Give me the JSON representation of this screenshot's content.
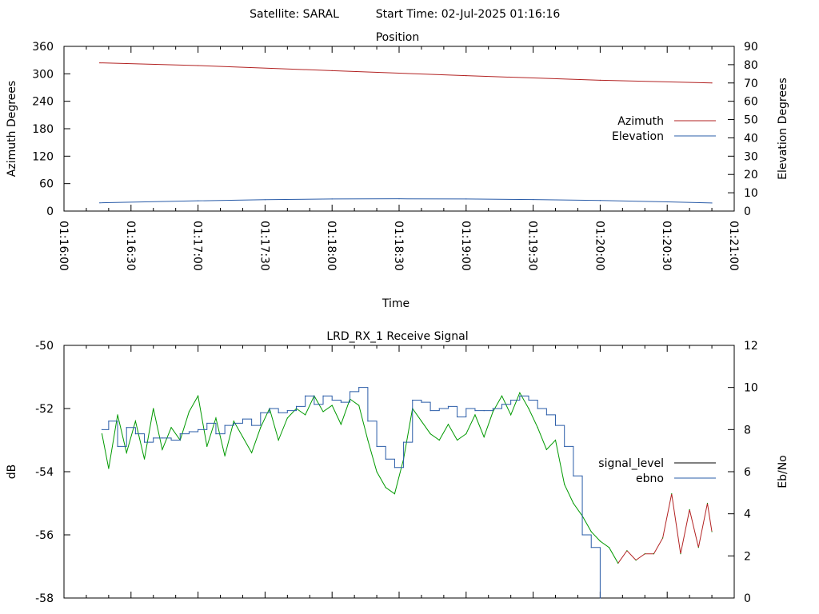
{
  "header": {
    "satellite_label": "Satellite: SARAL",
    "start_time_label": "Start Time: 02-Jul-2025 01:16:16"
  },
  "chart_data": [
    {
      "type": "line",
      "title": "Position",
      "xlabel": "Time",
      "ylabel": "Azimuth Degrees",
      "y2label": "Elevation Degrees",
      "x_ticks": [
        "01:16:00",
        "01:16:30",
        "01:17:00",
        "01:17:30",
        "01:18:00",
        "01:18:30",
        "01:19:00",
        "01:19:30",
        "01:20:00",
        "01:20:30",
        "01:21:00"
      ],
      "xlim_seconds": [
        0,
        300
      ],
      "ylim": [
        0,
        360
      ],
      "y_ticks": [
        "0",
        "60",
        "120",
        "180",
        "240",
        "300",
        "360"
      ],
      "y2lim": [
        0,
        90
      ],
      "y2_ticks": [
        "0",
        "10",
        "20",
        "30",
        "40",
        "50",
        "60",
        "70",
        "80",
        "90"
      ],
      "legend_position": "right",
      "series": [
        {
          "name": "Azimuth",
          "axis": "y",
          "color": "#b22222",
          "x": [
            "01:16:16",
            "01:17:00",
            "01:18:00",
            "01:19:00",
            "01:20:00",
            "01:20:50"
          ],
          "values": [
            324,
            318,
            307,
            296,
            286,
            280
          ]
        },
        {
          "name": "Elevation",
          "axis": "y2",
          "color": "#2a5ca8",
          "x": [
            "01:16:16",
            "01:17:00",
            "01:17:30",
            "01:18:00",
            "01:18:30",
            "01:19:00",
            "01:19:30",
            "01:20:00",
            "01:20:30",
            "01:20:50"
          ],
          "values": [
            4.5,
            5.6,
            6.2,
            6.6,
            6.7,
            6.6,
            6.3,
            5.8,
            5.0,
            4.4
          ]
        }
      ]
    },
    {
      "type": "line",
      "title": "LRD_RX_1 Receive Signal",
      "ylabel": "dB",
      "y2label": "Eb/No",
      "ylim": [
        -58,
        -50
      ],
      "y_ticks": [
        "-58",
        "-56",
        "-54",
        "-52",
        "-50"
      ],
      "y2lim": [
        0,
        12
      ],
      "y2_ticks": [
        "0",
        "2",
        "4",
        "6",
        "8",
        "10",
        "12"
      ],
      "xlim_seconds": [
        0,
        300
      ],
      "legend_position": "right",
      "series": [
        {
          "name": "signal_level",
          "axis": "y",
          "color": "#009900",
          "note_color": "#b22222",
          "x": [
            "01:16:17",
            "01:16:20",
            "01:16:24",
            "01:16:28",
            "01:16:32",
            "01:16:36",
            "01:16:40",
            "01:16:44",
            "01:16:48",
            "01:16:52",
            "01:16:56",
            "01:17:00",
            "01:17:04",
            "01:17:08",
            "01:17:12",
            "01:17:16",
            "01:17:20",
            "01:17:24",
            "01:17:28",
            "01:17:32",
            "01:17:36",
            "01:17:40",
            "01:17:44",
            "01:17:48",
            "01:17:52",
            "01:17:56",
            "01:18:00",
            "01:18:04",
            "01:18:08",
            "01:18:12",
            "01:18:16",
            "01:18:20",
            "01:18:24",
            "01:18:28",
            "01:18:32",
            "01:18:36",
            "01:18:40",
            "01:18:44",
            "01:18:48",
            "01:18:52",
            "01:18:56",
            "01:19:00",
            "01:19:04",
            "01:19:08",
            "01:19:12",
            "01:19:16",
            "01:19:20",
            "01:19:24",
            "01:19:28",
            "01:19:32",
            "01:19:36",
            "01:19:40",
            "01:19:44",
            "01:19:48",
            "01:19:52",
            "01:19:56",
            "01:20:00",
            "01:20:04",
            "01:20:08",
            "01:20:12",
            "01:20:16",
            "01:20:20",
            "01:20:24",
            "01:20:28",
            "01:20:32",
            "01:20:36",
            "01:20:40",
            "01:20:44",
            "01:20:48",
            "01:20:50"
          ],
          "values": [
            -52.8,
            -53.9,
            -52.2,
            -53.4,
            -52.4,
            -53.6,
            -52.0,
            -53.3,
            -52.6,
            -53.0,
            -52.1,
            -51.6,
            -53.2,
            -52.3,
            -53.5,
            -52.4,
            -52.9,
            -53.4,
            -52.6,
            -52.0,
            -53.0,
            -52.3,
            -52.0,
            -52.2,
            -51.6,
            -52.1,
            -51.9,
            -52.5,
            -51.7,
            -51.9,
            -53.0,
            -54.0,
            -54.5,
            -54.7,
            -53.6,
            -52.0,
            -52.4,
            -52.8,
            -53.0,
            -52.5,
            -53.0,
            -52.8,
            -52.2,
            -52.9,
            -52.1,
            -51.6,
            -52.2,
            -51.5,
            -52.0,
            -52.6,
            -53.3,
            -53.0,
            -54.4,
            -55.0,
            -55.4,
            -55.9,
            -56.2,
            -56.4,
            -56.9,
            -56.5,
            -56.8,
            -56.6,
            -56.6,
            -56.1,
            -54.7,
            -56.6,
            -55.2,
            -56.4,
            -55.0,
            -55.9
          ]
        },
        {
          "name": "ebno",
          "axis": "y2",
          "color": "#2a5ca8",
          "x": [
            "01:16:17",
            "01:16:20",
            "01:16:24",
            "01:16:28",
            "01:16:32",
            "01:16:36",
            "01:16:40",
            "01:16:44",
            "01:16:48",
            "01:16:52",
            "01:16:56",
            "01:17:00",
            "01:17:04",
            "01:17:08",
            "01:17:12",
            "01:17:16",
            "01:17:20",
            "01:17:24",
            "01:17:28",
            "01:17:32",
            "01:17:36",
            "01:17:40",
            "01:17:44",
            "01:17:48",
            "01:17:52",
            "01:17:56",
            "01:18:00",
            "01:18:04",
            "01:18:08",
            "01:18:12",
            "01:18:16",
            "01:18:20",
            "01:18:24",
            "01:18:28",
            "01:18:32",
            "01:18:36",
            "01:18:40",
            "01:18:44",
            "01:18:48",
            "01:18:52",
            "01:18:56",
            "01:19:00",
            "01:19:04",
            "01:19:08",
            "01:19:12",
            "01:19:16",
            "01:19:20",
            "01:19:24",
            "01:19:28",
            "01:19:32",
            "01:19:36",
            "01:19:40",
            "01:19:44",
            "01:19:48",
            "01:19:52",
            "01:19:56",
            "01:20:00"
          ],
          "values": [
            8.0,
            8.4,
            7.2,
            8.1,
            7.8,
            7.4,
            7.6,
            7.6,
            7.5,
            7.8,
            7.9,
            8.0,
            8.3,
            7.8,
            8.2,
            8.3,
            8.5,
            8.2,
            8.8,
            9.0,
            8.8,
            8.9,
            9.1,
            9.6,
            9.2,
            9.6,
            9.4,
            9.3,
            9.8,
            10.0,
            8.4,
            7.2,
            6.6,
            6.2,
            7.4,
            9.4,
            9.3,
            8.9,
            9.0,
            9.1,
            8.6,
            9.0,
            8.9,
            8.9,
            9.0,
            9.2,
            9.4,
            9.6,
            9.4,
            9.0,
            8.7,
            8.2,
            7.2,
            5.8,
            3.0,
            2.4,
            0.0
          ]
        }
      ]
    }
  ]
}
